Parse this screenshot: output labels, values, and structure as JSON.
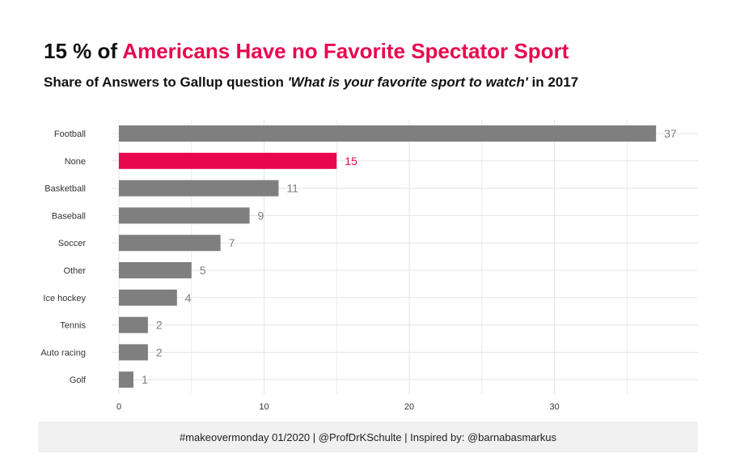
{
  "header": {
    "title_prefix": "15 % of ",
    "title_highlight": "Americans Have no Favorite Spectator Sport",
    "subtitle_prefix": "Share of Answers to Gallup question ",
    "subtitle_question": "'What is your favorite sport to watch'",
    "subtitle_suffix": " in 2017"
  },
  "footer": {
    "caption": "#makeovermonday 01/2020 | @ProfDrKSchulte | Inspired by: @barnabasmarkus"
  },
  "colors": {
    "bar": "#7f7f7f",
    "highlight": "#e8074f",
    "label": "#7f7f7f",
    "grid": "#e6e6e6",
    "axis_text": "#333333"
  },
  "chart_data": {
    "type": "bar",
    "orientation": "horizontal",
    "categories": [
      "Football",
      "None",
      "Basketball",
      "Baseball",
      "Soccer",
      "Other",
      "Ice hockey",
      "Tennis",
      "Auto racing",
      "Golf"
    ],
    "values": [
      37,
      15,
      11,
      9,
      7,
      5,
      4,
      2,
      2,
      1
    ],
    "highlight_category": "None",
    "xlim": [
      0,
      39
    ],
    "x_ticks": [
      0,
      10,
      20,
      30
    ],
    "grid": true,
    "legend": "none",
    "data_labels": true
  }
}
